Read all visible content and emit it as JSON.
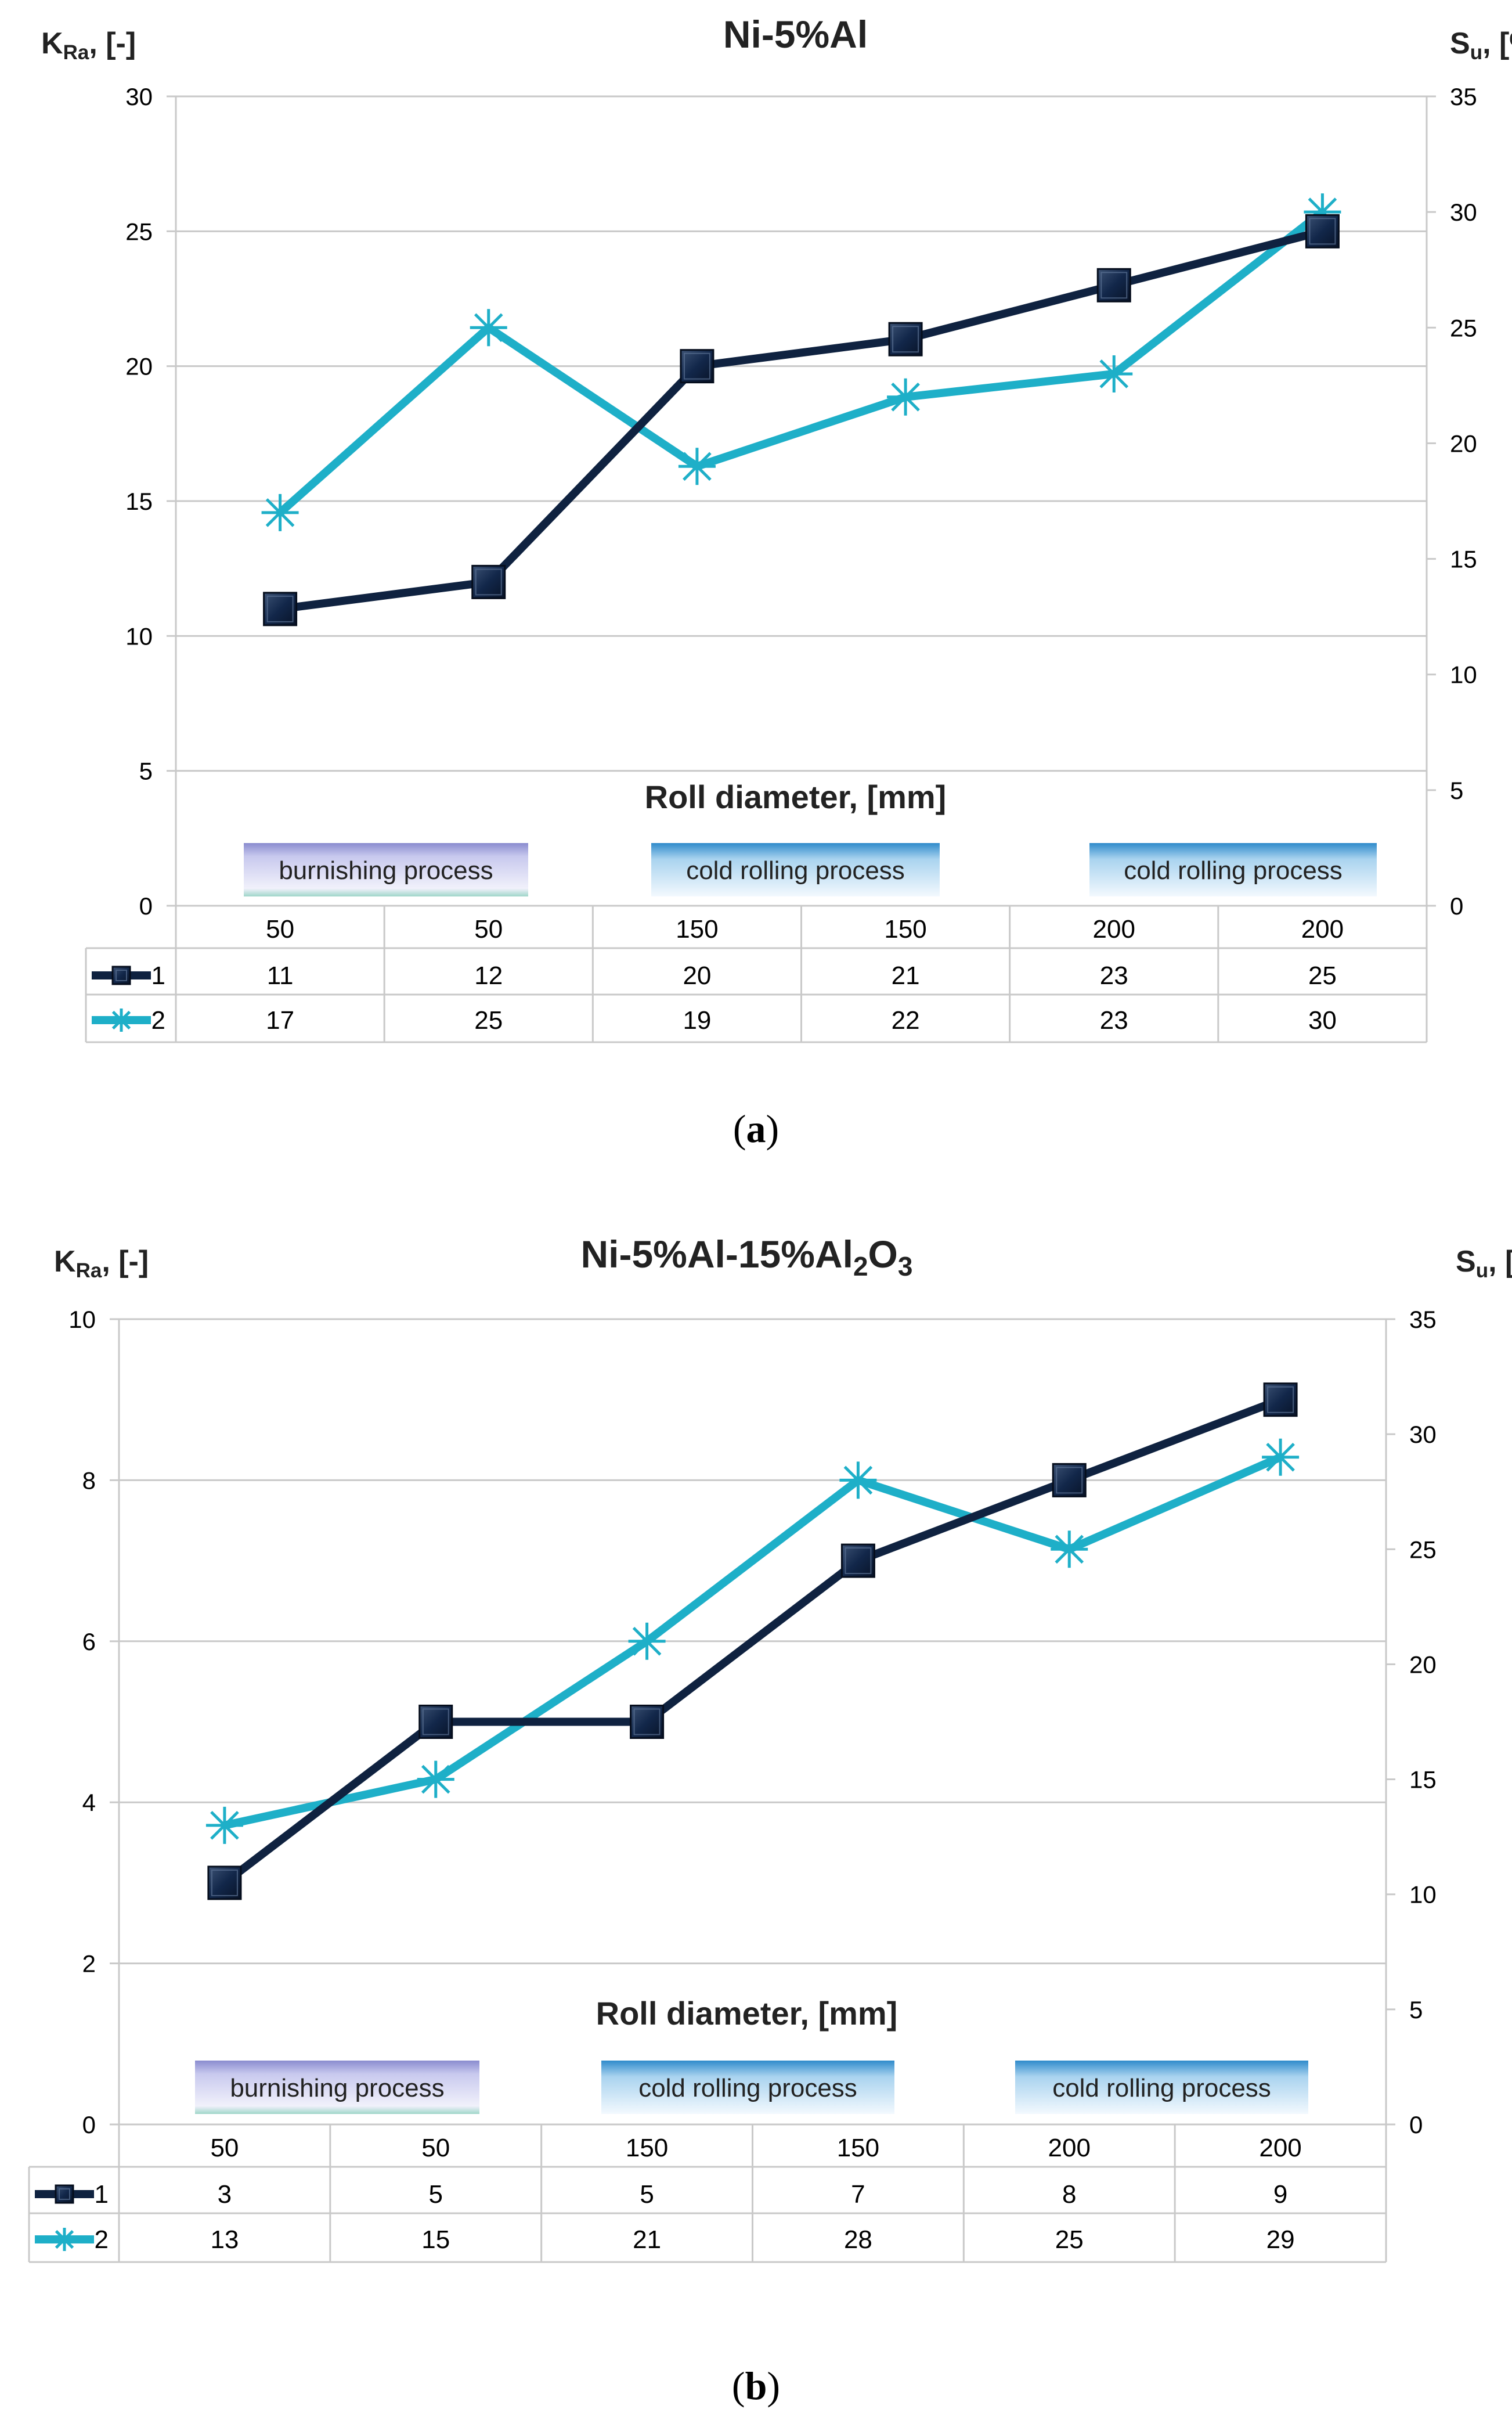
{
  "chart_data": [
    {
      "id": "a",
      "type": "line",
      "title": "Ni-5%Al",
      "title_sub": "",
      "title_tail": "",
      "left_axis_label": {
        "main": "K",
        "sub": "Ra",
        "tail": ", [-]"
      },
      "right_axis_label": {
        "main": "S",
        "sub": "u",
        "tail": ", [%]"
      },
      "ylim_left": [
        0,
        30
      ],
      "yticks_left": [
        0,
        5,
        10,
        15,
        20,
        25,
        30
      ],
      "ylim_right": [
        0,
        35
      ],
      "yticks_right": [
        0,
        5,
        10,
        15,
        20,
        25,
        30,
        35
      ],
      "xlabel": "Roll diameter, [mm]",
      "categories": [
        "50",
        "50",
        "150",
        "150",
        "200",
        "200"
      ],
      "series": [
        {
          "name": "1",
          "axis": "left",
          "marker": "square",
          "color": "#0f2240",
          "values": [
            11,
            12,
            20,
            21,
            23,
            25
          ]
        },
        {
          "name": "2",
          "axis": "right",
          "marker": "star",
          "color": "#1eafc8",
          "values": [
            17,
            25,
            19,
            22,
            23,
            30
          ]
        }
      ],
      "process_labels": [
        "burnishing process",
        "cold rolling  process",
        "cold rolling  process"
      ],
      "grid": true,
      "legend": "data-table"
    },
    {
      "id": "b",
      "type": "line",
      "title": "Ni-5%Al-15%Al",
      "title_sub": "2",
      "title_tail": "O",
      "title_tail_sub": "3",
      "left_axis_label": {
        "main": "K",
        "sub": "Ra",
        "tail": ", [-]"
      },
      "right_axis_label": {
        "main": "S",
        "sub": "u",
        "tail": ", [%]"
      },
      "ylim_left": [
        0,
        10
      ],
      "yticks_left": [
        0,
        2,
        4,
        6,
        8,
        10
      ],
      "ylim_right": [
        0,
        35
      ],
      "yticks_right": [
        0,
        5,
        10,
        15,
        20,
        25,
        30,
        35
      ],
      "xlabel": "Roll diameter, [mm]",
      "categories": [
        "50",
        "50",
        "150",
        "150",
        "200",
        "200"
      ],
      "series": [
        {
          "name": "1",
          "axis": "left",
          "marker": "square",
          "color": "#0f2240",
          "values": [
            3,
            5,
            5,
            7,
            8,
            9
          ]
        },
        {
          "name": "2",
          "axis": "right",
          "marker": "star",
          "color": "#1eafc8",
          "values": [
            13,
            15,
            21,
            28,
            25,
            29
          ]
        }
      ],
      "process_labels": [
        "burnishing process",
        "cold rolling  process",
        "cold rolling  process"
      ],
      "grid": true,
      "legend": "data-table"
    }
  ],
  "captions": [
    "a",
    "b"
  ]
}
